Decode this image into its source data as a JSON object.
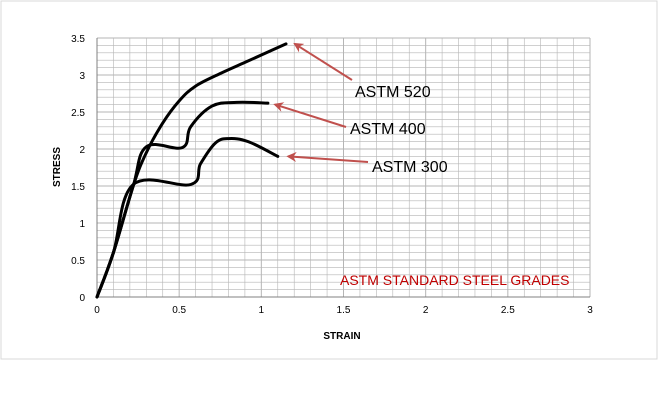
{
  "chart_data": {
    "type": "line",
    "title": "",
    "xlabel": "STRAIN",
    "ylabel": "STRESS",
    "xlim": [
      0,
      3
    ],
    "ylim": [
      0,
      3.5
    ],
    "x_ticks": [
      "0",
      "0.5",
      "1",
      "1.5",
      "2",
      "2.5",
      "3"
    ],
    "y_ticks": [
      "0",
      "0.5",
      "1",
      "1.5",
      "2",
      "2.5",
      "3",
      "3.5"
    ],
    "grid": true,
    "series": [
      {
        "name": "ASTM 520",
        "points": [
          [
            0,
            0
          ],
          [
            0.1,
            0.6
          ],
          [
            0.22,
            1.5
          ],
          [
            0.3,
            1.95
          ],
          [
            0.4,
            2.35
          ],
          [
            0.5,
            2.65
          ],
          [
            0.6,
            2.85
          ],
          [
            0.75,
            3.02
          ],
          [
            0.9,
            3.17
          ],
          [
            1.05,
            3.32
          ],
          [
            1.15,
            3.42
          ]
        ]
      },
      {
        "name": "ASTM 400",
        "points": [
          [
            0,
            0
          ],
          [
            0.1,
            0.6
          ],
          [
            0.22,
            1.5
          ],
          [
            0.3,
            2.03
          ],
          [
            0.52,
            2.02
          ],
          [
            0.57,
            2.3
          ],
          [
            0.7,
            2.58
          ],
          [
            0.85,
            2.63
          ],
          [
            1.04,
            2.62
          ]
        ]
      },
      {
        "name": "ASTM 300",
        "points": [
          [
            0,
            0
          ],
          [
            0.1,
            0.6
          ],
          [
            0.22,
            1.52
          ],
          [
            0.57,
            1.52
          ],
          [
            0.63,
            1.8
          ],
          [
            0.72,
            2.08
          ],
          [
            0.8,
            2.14
          ],
          [
            0.92,
            2.1
          ],
          [
            1.1,
            1.9
          ]
        ]
      }
    ],
    "annotations": [
      {
        "text": "ASTM 520",
        "points_to_series": "ASTM 520",
        "arrow_tip": [
          1.18,
          3.42
        ]
      },
      {
        "text": "ASTM 400",
        "points_to_series": "ASTM 400",
        "arrow_tip": [
          1.06,
          2.6
        ]
      },
      {
        "text": "ASTM 300",
        "points_to_series": "ASTM 300",
        "arrow_tip": [
          1.14,
          1.9
        ]
      }
    ],
    "note": "ASTM STANDARD STEEL GRADES"
  },
  "colors": {
    "line": "#000000",
    "grid": "#b5b5b5",
    "arrow": "#c0504d",
    "note": "#c00000",
    "frame": "#d9d9d9"
  }
}
